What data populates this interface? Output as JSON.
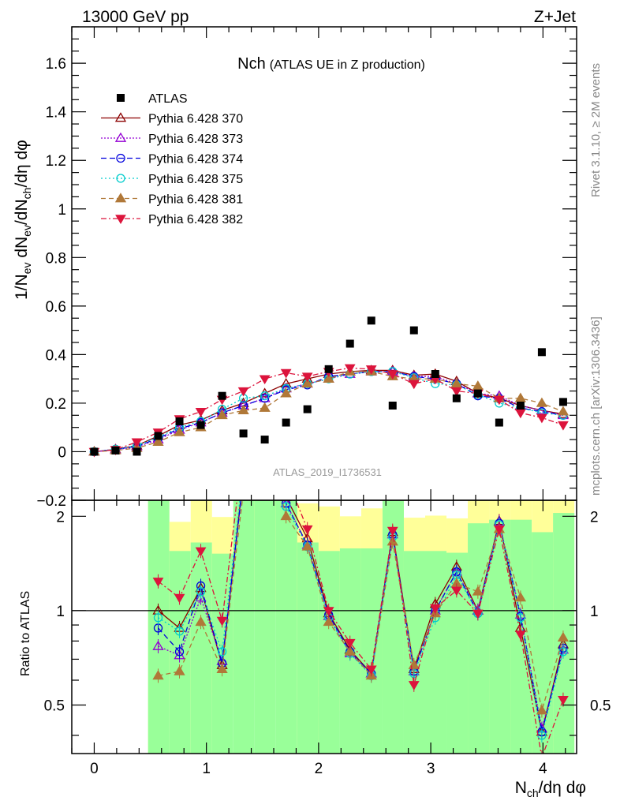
{
  "header": {
    "left_title": "13000 GeV pp",
    "right_title": "Z+Jet"
  },
  "plot_title": {
    "main": "Nch",
    "sub": "(ATLAS UE in Z production)"
  },
  "side_labels": {
    "rivet": "Rivet 3.1.10, ≥ 2M events",
    "mcplots": "mcplots.cern.ch [arXiv:1306.3436]"
  },
  "watermark": "ATLAS_2019_I1736531",
  "ratio_ylabel": "Ratio to ATLAS",
  "axis_labels": {
    "y_main_parts": [
      "1/N",
      "ev",
      " dN",
      "ev",
      "/dN",
      "ch",
      "/dη dφ"
    ],
    "x_parts": [
      "N",
      "ch",
      "/dη dφ"
    ]
  },
  "chart_data": {
    "type": "scatter",
    "xlim": [
      -0.2,
      4.3
    ],
    "main_ylim": [
      -0.2,
      1.75
    ],
    "ratio_ylim": [
      0.35,
      2.25
    ],
    "ratio_log_scale": true,
    "x_ticks": [
      0,
      1,
      2,
      3,
      4
    ],
    "main_y_ticks": [
      -0.2,
      0,
      0.2,
      0.4,
      0.6,
      0.8,
      1,
      1.2,
      1.4,
      1.6
    ],
    "main_y_tick_labels": [
      "−0.2",
      "0",
      "0.2",
      "0.4",
      "0.6",
      "0.8",
      "1",
      "1.2",
      "1.4",
      "1.6"
    ],
    "ratio_y_ticks": [
      0.5,
      1,
      2
    ],
    "ratio_y_tick_labels": [
      "0.5",
      "1",
      "2"
    ],
    "x": [
      0,
      0.19,
      0.38,
      0.57,
      0.76,
      0.95,
      1.14,
      1.33,
      1.52,
      1.71,
      1.9,
      2.09,
      2.28,
      2.47,
      2.66,
      2.85,
      3.04,
      3.23,
      3.42,
      3.61,
      3.8,
      3.99,
      4.18
    ],
    "data": {
      "name": "ATLAS",
      "values": [
        0.0,
        0.005,
        0.0,
        0.065,
        0.125,
        0.11,
        0.23,
        0.075,
        0.05,
        0.12,
        0.175,
        0.34,
        0.445,
        0.54,
        0.19,
        0.5,
        0.32,
        0.22,
        0.24,
        0.12,
        0.19,
        0.41,
        0.205
      ]
    },
    "series": [
      {
        "name": "Pythia 6.428 370",
        "color": "#8b0000",
        "marker": "triangle-open",
        "dash": "",
        "values": [
          0.0,
          0.01,
          0.025,
          0.065,
          0.11,
          0.13,
          0.17,
          0.2,
          0.24,
          0.28,
          0.3,
          0.32,
          0.33,
          0.335,
          0.335,
          0.315,
          0.32,
          0.29,
          0.24,
          0.22,
          0.19,
          0.17,
          0.155
        ]
      },
      {
        "name": "Pythia 6.428 373",
        "color": "#9400d3",
        "marker": "triangle-open",
        "dash": "2,2",
        "values": [
          0.0,
          0.008,
          0.02,
          0.05,
          0.09,
          0.12,
          0.16,
          0.19,
          0.22,
          0.26,
          0.28,
          0.3,
          0.32,
          0.33,
          0.33,
          0.31,
          0.31,
          0.28,
          0.24,
          0.23,
          0.19,
          0.17,
          0.15
        ]
      },
      {
        "name": "Pythia 6.428 374",
        "color": "#0000dd",
        "marker": "circle-open",
        "dash": "7,4",
        "values": [
          0.0,
          0.01,
          0.022,
          0.055,
          0.095,
          0.12,
          0.16,
          0.19,
          0.22,
          0.255,
          0.275,
          0.31,
          0.32,
          0.33,
          0.33,
          0.31,
          0.3,
          0.28,
          0.23,
          0.22,
          0.18,
          0.165,
          0.15
        ]
      },
      {
        "name": "Pythia 6.428 375",
        "color": "#00cccc",
        "marker": "circle-open",
        "dash": "2,3",
        "values": [
          0.0,
          0.01,
          0.025,
          0.06,
          0.1,
          0.125,
          0.175,
          0.22,
          0.23,
          0.26,
          0.28,
          0.3,
          0.32,
          0.33,
          0.33,
          0.305,
          0.28,
          0.275,
          0.235,
          0.2,
          0.18,
          0.16,
          0.15
        ]
      },
      {
        "name": "Pythia 6.428 381",
        "color": "#b07838",
        "marker": "triangle-filled",
        "dash": "6,4",
        "values": [
          0.0,
          0.005,
          0.015,
          0.04,
          0.08,
          0.1,
          0.15,
          0.17,
          0.18,
          0.24,
          0.28,
          0.3,
          0.33,
          0.33,
          0.31,
          0.3,
          0.3,
          0.28,
          0.27,
          0.22,
          0.22,
          0.2,
          0.165
        ]
      },
      {
        "name": "Pythia 6.428 382",
        "color": "#dc143c",
        "marker": "triangle-down-filled",
        "dash": "7,3,2,3",
        "values": [
          0.0,
          0.008,
          0.04,
          0.08,
          0.135,
          0.165,
          0.215,
          0.25,
          0.3,
          0.325,
          0.31,
          0.33,
          0.345,
          0.34,
          0.32,
          0.28,
          0.3,
          0.25,
          0.24,
          0.215,
          0.16,
          0.14,
          0.11
        ]
      }
    ],
    "ratio_series": [
      {
        "name": "Pythia 6.428 370",
        "values": [
          null,
          null,
          null,
          1.0,
          0.88,
          1.18,
          0.67,
          2.7,
          4.8,
          2.3,
          1.7,
          0.98,
          0.75,
          0.63,
          1.78,
          0.65,
          1.05,
          1.38,
          1.0,
          1.93,
          0.88,
          0.41,
          0.78
        ]
      },
      {
        "name": "Pythia 6.428 373",
        "values": [
          null,
          null,
          null,
          0.77,
          0.72,
          1.1,
          0.69,
          2.6,
          4.5,
          2.2,
          1.62,
          0.96,
          0.73,
          0.63,
          1.75,
          0.64,
          1.0,
          1.33,
          1.0,
          1.92,
          0.97,
          0.42,
          0.75
        ]
      },
      {
        "name": "Pythia 6.428 374",
        "values": [
          null,
          null,
          null,
          0.88,
          0.74,
          1.2,
          0.68,
          2.65,
          4.5,
          2.2,
          1.62,
          0.97,
          0.74,
          0.63,
          1.75,
          0.64,
          1.0,
          1.33,
          0.98,
          1.9,
          0.96,
          0.41,
          0.76
        ]
      },
      {
        "name": "Pythia 6.428 375",
        "values": [
          null,
          null,
          null,
          0.95,
          0.86,
          1.15,
          0.74,
          2.8,
          4.6,
          2.15,
          1.6,
          0.95,
          0.73,
          0.62,
          1.72,
          0.63,
          0.95,
          1.3,
          0.98,
          1.88,
          0.95,
          0.4,
          0.74
        ]
      },
      {
        "name": "Pythia 6.428 381",
        "values": [
          null,
          null,
          null,
          0.62,
          0.64,
          0.92,
          0.65,
          2.4,
          3.8,
          2.0,
          1.6,
          0.92,
          0.74,
          0.62,
          1.66,
          0.67,
          0.98,
          1.22,
          1.15,
          1.82,
          1.1,
          0.48,
          0.82
        ]
      },
      {
        "name": "Pythia 6.428 382",
        "values": [
          null,
          null,
          null,
          1.24,
          1.1,
          1.55,
          0.93,
          3.3,
          5.9,
          2.7,
          1.82,
          1.0,
          0.79,
          0.65,
          1.8,
          0.58,
          1.02,
          1.16,
          0.98,
          1.82,
          0.84,
          0.34,
          0.52
        ]
      }
    ],
    "ratio_bands": {
      "x_edges": [
        0.48,
        0.67,
        0.86,
        1.05,
        1.24,
        1.43,
        1.62,
        1.81,
        2.0,
        2.19,
        2.38,
        2.57,
        2.76,
        2.95,
        3.14,
        3.33,
        3.52,
        3.71,
        3.9,
        4.09,
        4.28
      ],
      "yellow_low": [
        0.1,
        0.52,
        0.1,
        0.53,
        1.9,
        1.0,
        1.0,
        0.1,
        0.53,
        0.48,
        0.53,
        1.0,
        0.52,
        0.53,
        0.5,
        0.1,
        0.1,
        0.1,
        0.1,
        0.1
      ],
      "yellow_high": [
        10,
        1.92,
        2.25,
        1.99,
        10,
        10,
        10,
        2.2,
        2.15,
        2.0,
        2.12,
        10,
        1.98,
        2.01,
        1.97,
        10,
        10,
        10,
        10,
        10
      ],
      "green_low": [
        0.1,
        0.1,
        0.1,
        0.1,
        0.1,
        0.1,
        0.1,
        0.1,
        0.1,
        0.1,
        0.1,
        0.1,
        0.1,
        0.1,
        0.1,
        0.1,
        0.1,
        0.1,
        0.1,
        0.1
      ],
      "green_high": [
        10,
        1.55,
        1.65,
        1.52,
        10,
        10,
        10,
        1.65,
        1.55,
        1.58,
        1.58,
        10,
        1.55,
        1.55,
        1.53,
        1.9,
        1.95,
        1.95,
        1.78,
        2.05
      ]
    }
  }
}
